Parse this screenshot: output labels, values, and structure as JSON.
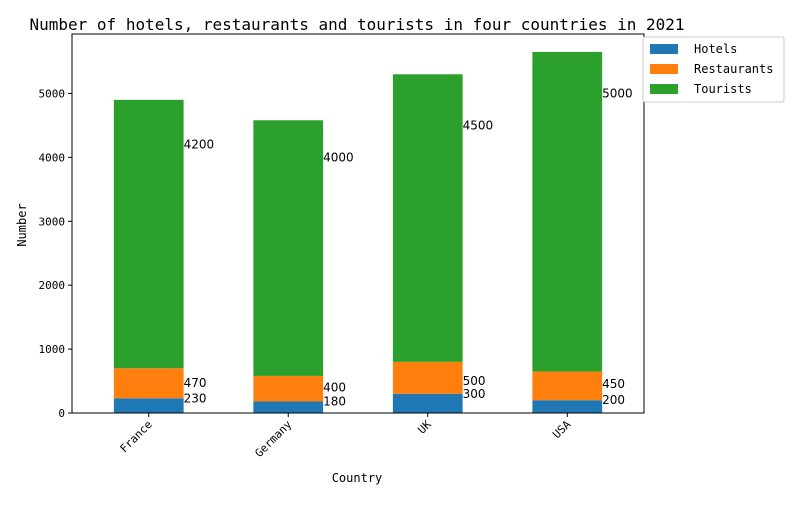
{
  "chart_data": {
    "type": "bar",
    "stacked": true,
    "title": "Number of hotels, restaurants and tourists in four countries in 2021",
    "xlabel": "Country",
    "ylabel": "Number",
    "categories": [
      "France",
      "Germany",
      "UK",
      "USA"
    ],
    "series": [
      {
        "name": "Hotels",
        "values": [
          230,
          180,
          300,
          200
        ],
        "color": "#1f77b4"
      },
      {
        "name": "Restaurants",
        "values": [
          470,
          400,
          500,
          450
        ],
        "color": "#ff7f0e"
      },
      {
        "name": "Tourists",
        "values": [
          4200,
          4000,
          4500,
          5000
        ],
        "color": "#2ca02c"
      }
    ],
    "ylim": [
      0,
      5930
    ],
    "yticks": [
      0,
      1000,
      2000,
      3000,
      4000,
      5000
    ],
    "grid": false,
    "legend_position": "upper right, outside plot"
  }
}
